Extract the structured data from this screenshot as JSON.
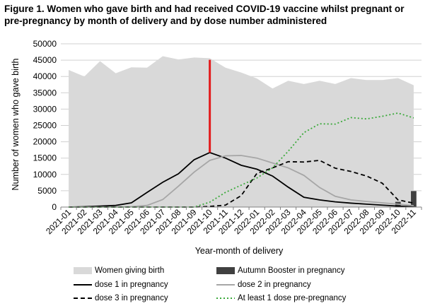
{
  "chart_data": {
    "type": "area+line",
    "title": "Figure 1. Women who gave birth and had received COVID-19 vaccine whilst pregnant or pre-pregnancy by month of delivery and by dose number administered",
    "title_lines": [
      "Figure 1. Women who gave birth and had received COVID-19 vaccine whilst pregnant or",
      "pre-pregnancy by month of delivery and by dose number administered"
    ],
    "xlabel": "Year-month of delivery",
    "ylabel": "Number of women who gave birth",
    "ylim": [
      0,
      50000
    ],
    "yticks": [
      0,
      5000,
      10000,
      15000,
      20000,
      25000,
      30000,
      35000,
      40000,
      45000,
      50000
    ],
    "grid": true,
    "categories": [
      "2021-01",
      "2021-02",
      "2021-03",
      "2021-04",
      "2021-05",
      "2021-06",
      "2021-07",
      "2021-08",
      "2021-09",
      "2021-10",
      "2021-11",
      "2021-12",
      "2022-01",
      "2022-02",
      "2022-03",
      "2022-04",
      "2022-05",
      "2022-06",
      "2022-07",
      "2022-08",
      "2022-09",
      "2022-10",
      "2022-11"
    ],
    "series": [
      {
        "name": "Women giving birth",
        "kind": "area",
        "color": "#d9d9d9",
        "values": [
          42000,
          40000,
          44700,
          41000,
          42800,
          42700,
          46200,
          45200,
          45800,
          45600,
          42700,
          41200,
          39400,
          36300,
          38700,
          37700,
          38700,
          37700,
          39500,
          38900,
          38900,
          39500,
          37300
        ]
      },
      {
        "name": "Autumn Booster in pregnancy",
        "kind": "bar",
        "color": "#404040",
        "values": [
          0,
          0,
          0,
          0,
          0,
          0,
          0,
          0,
          0,
          0,
          0,
          0,
          0,
          0,
          0,
          0,
          0,
          0,
          0,
          0,
          0,
          1600,
          4900
        ]
      },
      {
        "name": "dose 1 in pregnancy",
        "kind": "line",
        "color": "#000000",
        "dash": "",
        "values": [
          0,
          100,
          300,
          500,
          1300,
          4500,
          7600,
          10200,
          14500,
          16700,
          15000,
          12800,
          11600,
          9500,
          6100,
          3000,
          2200,
          1600,
          1200,
          900,
          600,
          300,
          100
        ]
      },
      {
        "name": "dose 2 in pregnancy",
        "kind": "line",
        "color": "#a6a6a6",
        "dash": "",
        "values": [
          0,
          0,
          0,
          0,
          100,
          500,
          2300,
          6400,
          10700,
          14300,
          15700,
          15800,
          15000,
          13500,
          12000,
          9700,
          6000,
          3300,
          2200,
          1700,
          1300,
          900,
          400
        ]
      },
      {
        "name": "dose 3 in pregnancy",
        "kind": "line",
        "color": "#000000",
        "dash": "6,4",
        "values": [
          0,
          0,
          0,
          0,
          0,
          0,
          0,
          0,
          0,
          200,
          600,
          3500,
          10300,
          12000,
          13900,
          13800,
          14300,
          11900,
          10900,
          9500,
          7300,
          2200,
          1200
        ]
      },
      {
        "name": "At least 1 dose pre-pregnancy",
        "kind": "line",
        "color": "#3aa93a",
        "dash": "2,3",
        "values": [
          0,
          0,
          0,
          0,
          0,
          0,
          0,
          0,
          0,
          1500,
          4500,
          6700,
          8900,
          12000,
          17100,
          22800,
          25500,
          25400,
          27400,
          27000,
          27800,
          28800,
          27300
        ]
      }
    ],
    "annotation": {
      "type": "vertical-line",
      "color": "#e31a1c",
      "category": "2021-10",
      "from": 16700,
      "to": 45100
    },
    "legend": [
      {
        "label": "Women giving birth",
        "symbol": "area",
        "color": "#d9d9d9"
      },
      {
        "label": "Autumn Booster in pregnancy",
        "symbol": "bar",
        "color": "#404040"
      },
      {
        "label": "dose 1 in pregnancy",
        "symbol": "line",
        "color": "#000000",
        "dash": ""
      },
      {
        "label": "dose 2 in pregnancy",
        "symbol": "line",
        "color": "#a6a6a6",
        "dash": ""
      },
      {
        "label": "dose 3 in pregnancy",
        "symbol": "line",
        "color": "#000000",
        "dash": "6,4"
      },
      {
        "label": "At least 1 dose pre-pregnancy",
        "symbol": "line",
        "color": "#3aa93a",
        "dash": "2,3"
      }
    ]
  }
}
